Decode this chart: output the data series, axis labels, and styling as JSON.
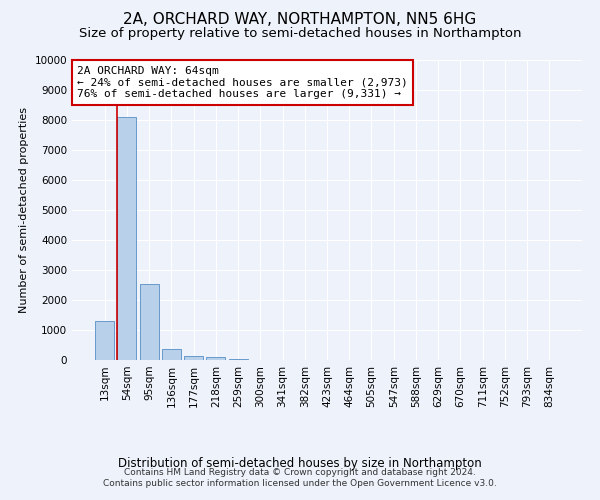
{
  "title": "2A, ORCHARD WAY, NORTHAMPTON, NN5 6HG",
  "subtitle": "Size of property relative to semi-detached houses in Northampton",
  "xlabel_bottom": "Distribution of semi-detached houses by size in Northampton",
  "ylabel": "Number of semi-detached properties",
  "categories": [
    "13sqm",
    "54sqm",
    "95sqm",
    "136sqm",
    "177sqm",
    "218sqm",
    "259sqm",
    "300sqm",
    "341sqm",
    "382sqm",
    "423sqm",
    "464sqm",
    "505sqm",
    "547sqm",
    "588sqm",
    "629sqm",
    "670sqm",
    "711sqm",
    "752sqm",
    "793sqm",
    "834sqm"
  ],
  "bar_values": [
    1300,
    8100,
    2550,
    380,
    150,
    100,
    30,
    0,
    0,
    0,
    0,
    0,
    0,
    0,
    0,
    0,
    0,
    0,
    0,
    0,
    0
  ],
  "bar_color": "#b8d0ea",
  "bar_edge_color": "#6699cc",
  "ylim": [
    0,
    10000
  ],
  "yticks": [
    0,
    1000,
    2000,
    3000,
    4000,
    5000,
    6000,
    7000,
    8000,
    9000,
    10000
  ],
  "property_line_index": 1,
  "property_line_color": "#cc0000",
  "annotation_line1": "2A ORCHARD WAY: 64sqm",
  "annotation_line2": "← 24% of semi-detached houses are smaller (2,973)",
  "annotation_line3": "76% of semi-detached houses are larger (9,331) →",
  "annotation_box_color": "#ffffff",
  "annotation_box_edge": "#cc0000",
  "footer_line1": "Contains HM Land Registry data © Crown copyright and database right 2024.",
  "footer_line2": "Contains public sector information licensed under the Open Government Licence v3.0.",
  "background_color": "#eef2fb",
  "grid_color": "#ffffff",
  "title_fontsize": 11,
  "subtitle_fontsize": 9.5,
  "ylabel_fontsize": 8,
  "tick_fontsize": 7.5,
  "annotation_fontsize": 8
}
